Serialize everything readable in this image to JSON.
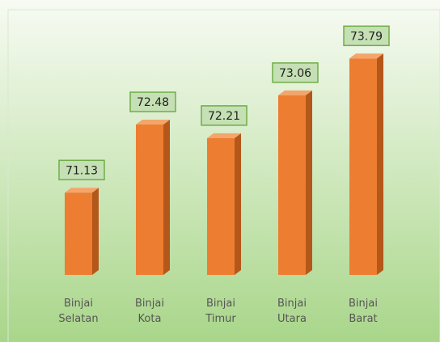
{
  "chart_data": {
    "type": "bar",
    "categories": [
      "Binjai Selatan",
      "Binjai Kota",
      "Binjai Timur",
      "Binjai Utara",
      "Binjai Barat"
    ],
    "values": [
      71.13,
      72.48,
      72.21,
      73.06,
      73.79
    ],
    "color": "#ed7d31",
    "ylim": [
      69.5,
      74.5
    ]
  }
}
